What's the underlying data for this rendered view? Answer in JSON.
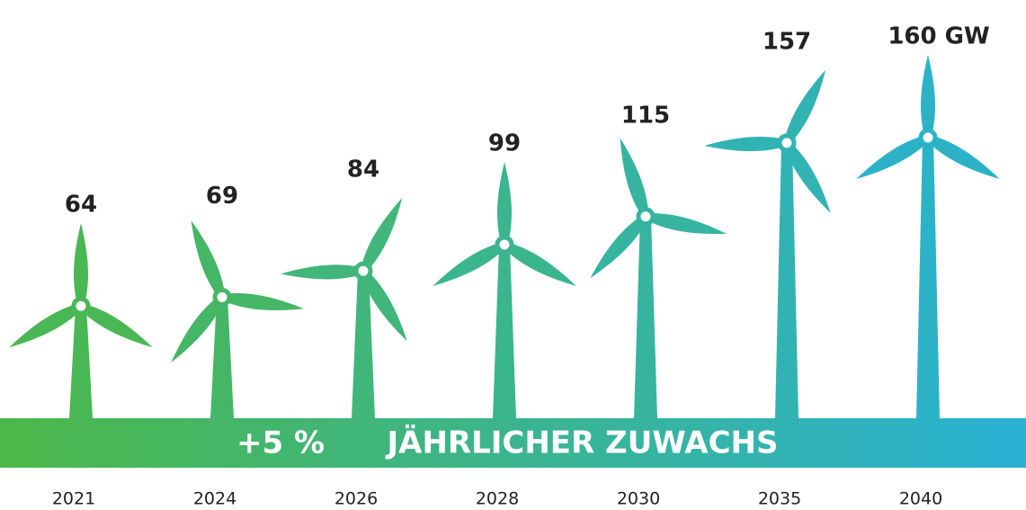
{
  "chart_data": {
    "type": "turbine-bar",
    "categories": [
      "2021",
      "2024",
      "2026",
      "2028",
      "2030",
      "2035",
      "2040"
    ],
    "values": [
      64,
      69,
      84,
      99,
      115,
      157,
      160
    ],
    "value_labels": [
      "64",
      "69",
      "84",
      "99",
      "115",
      "157",
      "160 GW"
    ],
    "banner": {
      "growth": "+5 %",
      "text": "JÄHRLICHER ZUWACHS"
    },
    "gradient": [
      "#4cb848",
      "#29b1d4"
    ]
  }
}
